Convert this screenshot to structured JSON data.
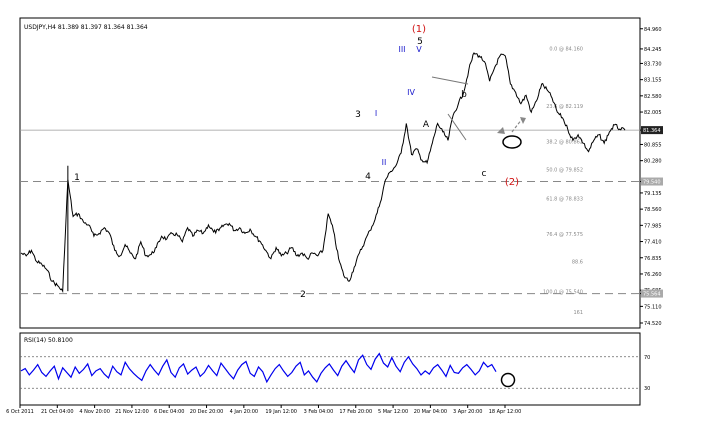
{
  "header": {
    "symbol_text": "USDJPY,H4  81.389 81.397 81.364 81.364"
  },
  "rsi": {
    "header_text": "RSI(14) 50.8100",
    "levels": [
      70,
      30
    ],
    "axis_labels": [
      "70",
      "30"
    ],
    "series": [
      52,
      55,
      47,
      53,
      60,
      50,
      45,
      52,
      58,
      42,
      56,
      50,
      44,
      57,
      49,
      54,
      61,
      46,
      52,
      55,
      48,
      43,
      58,
      51,
      47,
      63,
      55,
      49,
      44,
      40,
      52,
      60,
      53,
      47,
      58,
      66,
      50,
      44,
      56,
      61,
      48,
      53,
      57,
      45,
      50,
      59,
      52,
      46,
      62,
      55,
      48,
      42,
      53,
      60,
      64,
      49,
      45,
      57,
      51,
      38,
      47,
      55,
      60,
      52,
      45,
      50,
      58,
      63,
      47,
      52,
      44,
      38,
      49,
      56,
      61,
      53,
      46,
      58,
      65,
      57,
      50,
      66,
      72,
      60,
      54,
      67,
      74,
      62,
      57,
      69,
      58,
      51,
      63,
      70,
      61,
      55,
      47,
      52,
      48,
      56,
      60,
      53,
      45,
      59,
      50,
      49,
      56,
      60,
      54,
      47,
      52,
      63,
      57,
      60,
      51
    ]
  },
  "chart_data": {
    "type": "line",
    "title": "USDJPY,H4  81.389 81.397 81.364 81.364",
    "symbol": "USDJPY",
    "timeframe": "H4",
    "ohlc_header": {
      "open": 81.389,
      "high": 81.397,
      "low": 81.364,
      "close": 81.364
    },
    "current_price_label": "81.364",
    "level_marker_label": "79.540",
    "bottom_marker_label": "75.564",
    "ylim": [
      74.52,
      85.2
    ],
    "y_ticks": [
      "84.960",
      "84.245",
      "83.730",
      "83.155",
      "82.580",
      "82.005",
      "81.364",
      "80.855",
      "80.280",
      "79.540",
      "79.135",
      "78.560",
      "77.985",
      "77.410",
      "76.835",
      "76.260",
      "75.685",
      "75.564",
      "75.110",
      "74.520"
    ],
    "x_ticks": [
      "6 Oct 2011",
      "21 Oct 04:00",
      "4 Nov 20:00",
      "21 Nov 12:00",
      "6 Dec 04:00",
      "20 Dec 20:00",
      "4 Jan 20:00",
      "19 Jan 12:00",
      "3 Feb 04:00",
      "17 Feb 20:00",
      "5 Mar 12:00",
      "20 Mar 04:00",
      "3 Apr 20:00",
      "18 Apr 12:00"
    ],
    "series": [
      {
        "values": [
          77.0,
          76.9,
          77.1,
          76.7,
          76.6,
          76.4,
          76.0,
          75.85,
          75.65,
          79.6,
          78.3,
          78.4,
          78.1,
          78.0,
          77.6,
          77.7,
          77.9,
          77.7,
          77.1,
          76.9,
          77.3,
          77.0,
          76.8,
          77.4,
          76.9,
          76.95,
          77.2,
          77.6,
          77.5,
          77.7,
          77.65,
          77.4,
          77.9,
          77.6,
          77.8,
          77.7,
          78.0,
          77.75,
          77.8,
          78.0,
          78.05,
          77.8,
          77.9,
          77.7,
          77.85,
          77.6,
          77.4,
          77.1,
          76.8,
          77.2,
          76.9,
          77.0,
          77.2,
          76.9,
          77.0,
          76.8,
          77.0,
          76.9,
          77.1,
          78.4,
          77.8,
          76.8,
          76.2,
          76.0,
          76.5,
          77.0,
          77.4,
          77.8,
          78.2,
          78.8,
          79.6,
          79.9,
          80.1,
          80.55,
          81.6,
          80.5,
          80.7,
          80.3,
          80.2,
          80.9,
          81.6,
          81.3,
          81.0,
          81.9,
          82.3,
          82.7,
          83.5,
          84.1,
          84.0,
          83.8,
          83.1,
          83.6,
          84.0,
          84.0,
          83.0,
          82.7,
          82.3,
          82.6,
          82.0,
          82.4,
          83.0,
          82.8,
          82.5,
          82.0,
          81.8,
          81.4,
          81.0,
          81.2,
          80.9,
          80.6,
          81.0,
          81.2,
          80.9,
          81.3,
          81.55,
          81.4,
          81.36
        ]
      }
    ],
    "fibonacci": [
      {
        "label": "0.0 @ 84.160"
      },
      {
        "label": "23.6 @ 82.119"
      },
      {
        "label": "38.2 @ 80.862"
      },
      {
        "label": "50.0 @ 79.852"
      },
      {
        "label": "61.8 @ 78.833"
      },
      {
        "label": "76.4 @ 77.575"
      },
      {
        "label": "100.0 @ 75.540"
      },
      {
        "label": "88.6"
      },
      {
        "label": "161"
      }
    ],
    "wave_labels": [
      "1",
      "2",
      "3",
      "4",
      "5",
      "I",
      "II",
      "III",
      "IV",
      "V",
      "A",
      "b",
      "c",
      "(1)",
      "(2)"
    ]
  }
}
